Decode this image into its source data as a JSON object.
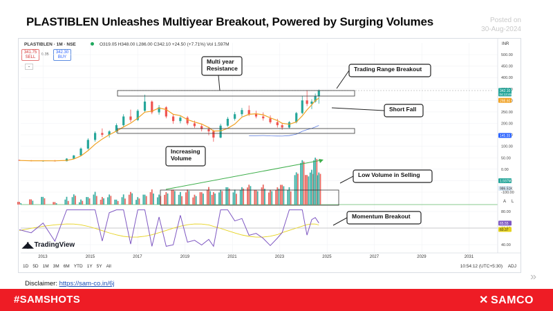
{
  "title": "PLASTIBLEN Unleashes Multiyear Breakout, Powered by Surging Volumes",
  "posted": {
    "label": "Posted on",
    "date": "30-Aug-2024"
  },
  "tv": {
    "symbol": "PLASTIBLEN · 1M · NSE",
    "ohlc": "O319.05 H348.00 L286.00 C342.10 +24.50 (+7.71%)  Vol 1.597M",
    "sell_price": "341.75",
    "sell_label": "SELL",
    "spread": "0.35",
    "buy_price": "342.30",
    "buy_label": "BUY",
    "currency": "INR",
    "logo": "TradingView",
    "ranges": [
      "1D",
      "5D",
      "1M",
      "3M",
      "6M",
      "YTD",
      "1Y",
      "5Y",
      "All"
    ],
    "clock": "10:54:12 (UTC+5:30)",
    "adj": "ADJ",
    "collapse": "⌄"
  },
  "annotations": {
    "resistance": "Multi year\nResistance",
    "breakout": "Trading Range Breakout",
    "shortfall": "Short Fall",
    "volume": "Increasing\nVolume",
    "lowvol": "Low Volume in Selling",
    "momentum": "Momentum Breakout"
  },
  "disclaimer": {
    "label": "Disclaimer:",
    "link": "https://sam-co.in/6j"
  },
  "footer": {
    "hashtag": "#SAMSHOTS",
    "brand": "SAMCO"
  },
  "colors": {
    "footer": "#ee1c25",
    "up": "#26a69a",
    "down": "#ef5350",
    "ma": "#f0a020",
    "rsi": "#7e57c2",
    "rsi_ma": "#e6d21e"
  },
  "chart_data": {
    "type": "candlestick",
    "interval": "1M",
    "x_axis": {
      "ticks": [
        "2013",
        "2015",
        "2017",
        "2019",
        "2021",
        "2023",
        "2025",
        "2027",
        "2029",
        "2031"
      ]
    },
    "price_axis": {
      "ticks": [
        "500.00",
        "450.00",
        "400.00",
        "350.00",
        "300.00",
        "250.00",
        "200.00",
        "150.00",
        "100.00",
        "50.00",
        "0.00",
        "-50.00",
        "-100.00"
      ],
      "ylim": [
        -100,
        500
      ]
    },
    "price_labels": {
      "last": "342.10",
      "countdown": "04:13:46",
      "ma": "298.60",
      "ma2": "145.55",
      "vol": "1.597M",
      "vol_ma": "986.51K"
    },
    "rsi": {
      "ticks": [
        "80.00",
        "60.00",
        "40.00"
      ],
      "value": "65.55",
      "ma": "60.37",
      "level": 60
    },
    "series": [
      {
        "name": "PLASTIBLEN",
        "kind": "candles",
        "candles": [
          [
            2012.0,
            40,
            42,
            36,
            38
          ],
          [
            2012.5,
            38,
            40,
            34,
            36
          ],
          [
            2013.0,
            36,
            39,
            33,
            37
          ],
          [
            2013.5,
            37,
            40,
            34,
            35
          ],
          [
            2014.0,
            35,
            48,
            34,
            46
          ],
          [
            2014.3,
            46,
            62,
            44,
            60
          ],
          [
            2014.6,
            60,
            95,
            58,
            90
          ],
          [
            2014.9,
            90,
            135,
            85,
            128
          ],
          [
            2015.2,
            128,
            165,
            120,
            158
          ],
          [
            2015.5,
            158,
            178,
            140,
            150
          ],
          [
            2015.8,
            150,
            170,
            138,
            165
          ],
          [
            2016.1,
            165,
            200,
            158,
            192
          ],
          [
            2016.4,
            192,
            240,
            185,
            230
          ],
          [
            2016.7,
            230,
            260,
            205,
            215
          ],
          [
            2017.0,
            215,
            262,
            210,
            255
          ],
          [
            2017.3,
            255,
            325,
            248,
            295
          ],
          [
            2017.6,
            295,
            300,
            240,
            248
          ],
          [
            2017.9,
            248,
            280,
            238,
            270
          ],
          [
            2018.2,
            270,
            275,
            222,
            230
          ],
          [
            2018.5,
            230,
            240,
            198,
            210
          ],
          [
            2018.8,
            210,
            232,
            200,
            225
          ],
          [
            2019.1,
            225,
            232,
            192,
            200
          ],
          [
            2019.4,
            200,
            212,
            180,
            188
          ],
          [
            2019.7,
            188,
            198,
            165,
            175
          ],
          [
            2020.0,
            175,
            185,
            148,
            165
          ],
          [
            2020.2,
            165,
            172,
            120,
            138
          ],
          [
            2020.5,
            138,
            198,
            135,
            190
          ],
          [
            2020.8,
            190,
            228,
            185,
            220
          ],
          [
            2021.1,
            220,
            250,
            212,
            240
          ],
          [
            2021.4,
            240,
            268,
            230,
            258
          ],
          [
            2021.7,
            258,
            278,
            232,
            240
          ],
          [
            2022.0,
            240,
            255,
            222,
            230
          ],
          [
            2022.3,
            230,
            248,
            212,
            222
          ],
          [
            2022.6,
            222,
            235,
            198,
            205
          ],
          [
            2022.9,
            205,
            220,
            182,
            192
          ],
          [
            2023.1,
            192,
            200,
            172,
            182
          ],
          [
            2023.4,
            182,
            210,
            178,
            205
          ],
          [
            2023.7,
            205,
            250,
            200,
            245
          ],
          [
            2023.95,
            245,
            320,
            240,
            300
          ],
          [
            2024.15,
            300,
            345,
            275,
            285
          ],
          [
            2024.35,
            285,
            305,
            262,
            295
          ],
          [
            2024.5,
            295,
            330,
            290,
            318
          ],
          [
            2024.65,
            319.05,
            348,
            286,
            342.1
          ]
        ]
      },
      {
        "name": "MA",
        "kind": "line"
      },
      {
        "name": "Volume",
        "kind": "bars"
      },
      {
        "name": "RSI",
        "kind": "line"
      }
    ]
  }
}
